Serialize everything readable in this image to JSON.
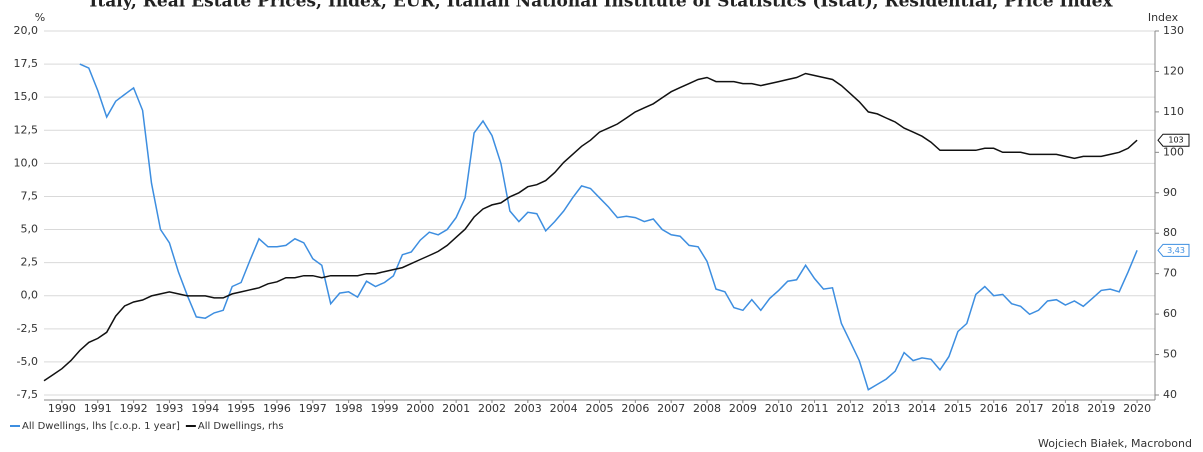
{
  "chart_data": {
    "type": "line",
    "title": "Italy, Real Estate Prices, Index, EUR, Italian National Institute of Statistics (Istat), Residential, Price Index",
    "y_label": "%",
    "y2_label": "Index",
    "source": "Wojciech Białek, Macrobond",
    "x": [
      1990,
      1990.25,
      1990.5,
      1990.75,
      1991,
      1991.25,
      1991.5,
      1991.75,
      1992,
      1992.25,
      1992.5,
      1992.75,
      1993,
      1993.25,
      1993.5,
      1993.75,
      1994,
      1994.25,
      1994.5,
      1994.75,
      1995,
      1995.25,
      1995.5,
      1995.75,
      1996,
      1996.25,
      1996.5,
      1996.75,
      1997,
      1997.25,
      1997.5,
      1997.75,
      1998,
      1998.25,
      1998.5,
      1998.75,
      1999,
      1999.25,
      1999.5,
      1999.75,
      2000,
      2000.25,
      2000.5,
      2000.75,
      2001,
      2001.25,
      2001.5,
      2001.75,
      2002,
      2002.25,
      2002.5,
      2002.75,
      2003,
      2003.25,
      2003.5,
      2003.75,
      2004,
      2004.25,
      2004.5,
      2004.75,
      2005,
      2005.25,
      2005.5,
      2005.75,
      2006,
      2006.25,
      2006.5,
      2006.75,
      2007,
      2007.25,
      2007.5,
      2007.75,
      2008,
      2008.25,
      2008.5,
      2008.75,
      2009,
      2009.25,
      2009.5,
      2009.75,
      2010,
      2010.25,
      2010.5,
      2010.75,
      2011,
      2011.25,
      2011.5,
      2011.75,
      2012,
      2012.25,
      2012.5,
      2012.75,
      2013,
      2013.25,
      2013.5,
      2013.75,
      2014,
      2014.25,
      2014.5,
      2014.75,
      2015,
      2015.25,
      2015.5,
      2015.75,
      2016,
      2016.25,
      2016.5,
      2016.75,
      2017,
      2017.25,
      2017.5,
      2017.75,
      2018,
      2018.25,
      2018.5,
      2018.75,
      2019,
      2019.25,
      2019.5,
      2019.75,
      2020,
      2020.25,
      2020.5
    ],
    "series": [
      {
        "name": "All Dwellings, lhs [c.o.p. 1 year]",
        "color": "#3d8ee0",
        "axis": "y",
        "end_label": "3,43",
        "values": [
          null,
          null,
          null,
          null,
          17.5,
          17.2,
          15.5,
          13.5,
          14.7,
          15.2,
          15.7,
          14.0,
          8.5,
          5.0,
          4.0,
          1.8,
          0.0,
          -1.6,
          -1.7,
          -1.3,
          -1.1,
          0.7,
          1.0,
          2.7,
          4.3,
          3.7,
          3.7,
          3.8,
          4.3,
          4.0,
          2.8,
          2.3,
          -0.6,
          0.2,
          0.3,
          -0.1,
          1.1,
          0.7,
          1.0,
          1.5,
          3.1,
          3.3,
          4.2,
          4.8,
          4.6,
          5.0,
          5.9,
          7.4,
          12.3,
          13.2,
          12.1,
          10.0,
          6.4,
          5.6,
          6.3,
          6.2,
          4.9,
          5.6,
          6.4,
          7.4,
          8.3,
          8.1,
          7.4,
          6.7,
          5.9,
          6.0,
          5.9,
          5.6,
          5.8,
          5.0,
          4.6,
          4.5,
          3.8,
          3.7,
          2.6,
          0.5,
          0.3,
          -0.9,
          -1.1,
          -0.3,
          -1.1,
          -0.2,
          0.4,
          1.1,
          1.2,
          2.3,
          1.3,
          0.5,
          0.6,
          -2.1,
          -3.5,
          -4.9,
          -7.1,
          -6.7,
          -6.3,
          -5.7,
          -4.3,
          -4.9,
          -4.7,
          -4.8,
          -5.6,
          -4.6,
          -2.7,
          -2.1,
          0.1,
          0.7,
          0.0,
          0.1,
          -0.6,
          -0.8,
          -1.4,
          -1.1,
          -0.4,
          -0.3,
          -0.7,
          -0.4,
          -0.8,
          -0.2,
          0.4,
          0.5,
          0.3,
          1.8,
          3.43
        ]
      },
      {
        "name": "All Dwellings, rhs",
        "color": "#111111",
        "axis": "y2",
        "end_label": "103",
        "values": [
          43.5,
          45,
          46.5,
          48.5,
          51,
          53,
          54,
          55.5,
          59.5,
          62,
          63,
          63.5,
          64.5,
          65,
          65.5,
          65,
          64.5,
          64.5,
          64.5,
          64,
          64,
          65,
          65.5,
          66,
          66.5,
          67.5,
          68,
          69,
          69,
          69.5,
          69.5,
          69,
          69.5,
          69.5,
          69.5,
          69.5,
          70,
          70,
          70.5,
          71,
          71.5,
          72.5,
          73.5,
          74.5,
          75.5,
          77,
          79,
          81,
          84,
          86,
          87,
          87.5,
          89,
          90,
          91.5,
          92,
          93,
          95,
          97.5,
          99.5,
          101.5,
          103,
          105,
          106,
          107,
          108.5,
          110,
          111,
          112,
          113.5,
          115,
          116,
          117,
          118,
          118.5,
          117.5,
          117.5,
          117.5,
          117,
          117,
          116.5,
          117,
          117.5,
          118,
          118.5,
          119.5,
          119,
          118.5,
          118,
          116.5,
          114.5,
          112.5,
          110,
          109.5,
          108.5,
          107.5,
          106,
          105,
          104,
          102.5,
          100.5,
          100.5,
          100.5,
          100.5,
          100.5,
          101,
          101,
          100,
          100,
          100,
          99.5,
          99.5,
          99.5,
          99.5,
          99,
          98.5,
          99,
          99,
          99,
          99.5,
          100,
          101,
          103
        ]
      }
    ],
    "xlim": [
      1990,
      2021
    ],
    "xticks": [
      {
        "value": 1990.5,
        "label": "1990"
      },
      {
        "value": 1991.5,
        "label": "1991"
      },
      {
        "value": 1992.5,
        "label": "1992"
      },
      {
        "value": 1993.5,
        "label": "1993"
      },
      {
        "value": 1994.5,
        "label": "1994"
      },
      {
        "value": 1995.5,
        "label": "1995"
      },
      {
        "value": 1996.5,
        "label": "1996"
      },
      {
        "value": 1997.5,
        "label": "1997"
      },
      {
        "value": 1998.5,
        "label": "1998"
      },
      {
        "value": 1999.5,
        "label": "1999"
      },
      {
        "value": 2000.5,
        "label": "2000"
      },
      {
        "value": 2001.5,
        "label": "2001"
      },
      {
        "value": 2002.5,
        "label": "2002"
      },
      {
        "value": 2003.5,
        "label": "2003"
      },
      {
        "value": 2004.5,
        "label": "2004"
      },
      {
        "value": 2005.5,
        "label": "2005"
      },
      {
        "value": 2006.5,
        "label": "2006"
      },
      {
        "value": 2007.5,
        "label": "2007"
      },
      {
        "value": 2008.5,
        "label": "2008"
      },
      {
        "value": 2009.5,
        "label": "2009"
      },
      {
        "value": 2010.5,
        "label": "2010"
      },
      {
        "value": 2011.5,
        "label": "2011"
      },
      {
        "value": 2012.5,
        "label": "2012"
      },
      {
        "value": 2013.5,
        "label": "2013"
      },
      {
        "value": 2014.5,
        "label": "2014"
      },
      {
        "value": 2015.5,
        "label": "2015"
      },
      {
        "value": 2016.5,
        "label": "2016"
      },
      {
        "value": 2017.5,
        "label": "2017"
      },
      {
        "value": 2018.5,
        "label": "2018"
      },
      {
        "value": 2019.5,
        "label": "2019"
      },
      {
        "value": 2020.5,
        "label": "2020"
      }
    ],
    "ylim": [
      -7.5,
      20
    ],
    "yticks": [
      {
        "value": -7.5,
        "label": "-7,5"
      },
      {
        "value": -5,
        "label": "-5,0"
      },
      {
        "value": -2.5,
        "label": "-2,5"
      },
      {
        "value": 0,
        "label": "0,0"
      },
      {
        "value": 2.5,
        "label": "2,5"
      },
      {
        "value": 5,
        "label": "5,0"
      },
      {
        "value": 7.5,
        "label": "7,5"
      },
      {
        "value": 10,
        "label": "10,0"
      },
      {
        "value": 12.5,
        "label": "12,5"
      },
      {
        "value": 15,
        "label": "15,0"
      },
      {
        "value": 17.5,
        "label": "17,5"
      },
      {
        "value": 20,
        "label": "20,0"
      }
    ],
    "y2lim": [
      40,
      130
    ],
    "y2ticks": [
      40,
      50,
      60,
      70,
      80,
      90,
      100,
      110,
      120,
      130
    ],
    "grid": true,
    "legend": "bottom-left"
  }
}
